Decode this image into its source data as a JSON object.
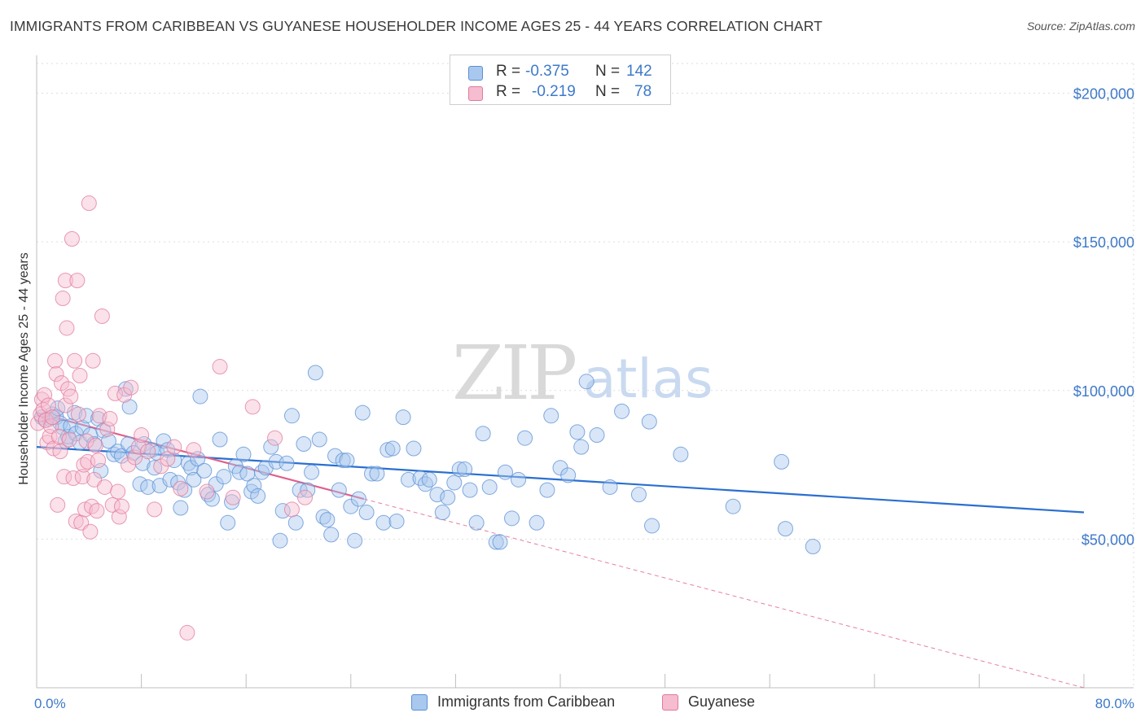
{
  "header": {
    "title": "IMMIGRANTS FROM CARIBBEAN VS GUYANESE HOUSEHOLDER INCOME AGES 25 - 44 YEARS CORRELATION CHART",
    "source": "Source: ZipAtlas.com"
  },
  "watermark": {
    "zip": "ZIP",
    "atlas": "atlas"
  },
  "stats": [
    {
      "r_label": "R =",
      "r_value": "-0.375",
      "n_label": "N =",
      "n_value": "142"
    },
    {
      "r_label": "R =",
      "r_value": "-0.219",
      "n_label": "N =",
      "n_value": "78"
    }
  ],
  "legend": [
    {
      "label": "Immigrants from Caribbean"
    },
    {
      "label": "Guyanese"
    }
  ],
  "colors": {
    "series1_fill": "#a9c8ee",
    "series1_stroke": "#5b8fd6",
    "series1_line": "#2a6fd0",
    "series2_fill": "#f6bccf",
    "series2_stroke": "#e07a9c",
    "series2_line": "#e0608c",
    "axis_text": "#3d79c9",
    "grid": "#dedede"
  },
  "chart_data": {
    "type": "scatter",
    "title": "IMMIGRANTS FROM CARIBBEAN VS GUYANESE HOUSEHOLDER INCOME AGES 25 - 44 YEARS CORRELATION CHART",
    "xlabel": "",
    "ylabel": "Householder Income Ages 25 - 44 years",
    "xlim": [
      0,
      80
    ],
    "ylim": [
      0,
      210000
    ],
    "x_tick_labels": [
      "0.0%",
      "80.0%"
    ],
    "y_ticks": [
      50000,
      100000,
      150000,
      200000
    ],
    "y_tick_labels": [
      "$50,000",
      "$100,000",
      "$150,000",
      "$200,000"
    ],
    "grid": true,
    "legend_position": "bottom",
    "series": [
      {
        "name": "Immigrants from Caribbean",
        "r": -0.375,
        "n": 142,
        "trend": {
          "x": [
            0,
            80
          ],
          "y": [
            81000,
            59000
          ]
        },
        "points": [
          [
            0.4,
            91000
          ],
          [
            0.7,
            90000
          ],
          [
            1.0,
            90500
          ],
          [
            1.2,
            92000
          ],
          [
            1.5,
            91000
          ],
          [
            1.6,
            94000
          ],
          [
            1.8,
            89000
          ],
          [
            2.0,
            87500
          ],
          [
            2.2,
            83000
          ],
          [
            2.4,
            84500
          ],
          [
            2.6,
            88000
          ],
          [
            2.9,
            92500
          ],
          [
            3.0,
            85500
          ],
          [
            3.3,
            82500
          ],
          [
            3.5,
            87500
          ],
          [
            3.8,
            91500
          ],
          [
            4.1,
            85000
          ],
          [
            4.4,
            82000
          ],
          [
            4.7,
            90500
          ],
          [
            4.9,
            73000
          ],
          [
            5.1,
            86500
          ],
          [
            5.5,
            83000
          ],
          [
            5.9,
            78500
          ],
          [
            6.2,
            79500
          ],
          [
            6.5,
            78000
          ],
          [
            6.8,
            100500
          ],
          [
            7.0,
            82000
          ],
          [
            7.1,
            94500
          ],
          [
            7.4,
            79000
          ],
          [
            7.9,
            68500
          ],
          [
            8.1,
            75500
          ],
          [
            8.2,
            82000
          ],
          [
            8.5,
            67500
          ],
          [
            8.8,
            80000
          ],
          [
            9.0,
            74000
          ],
          [
            9.2,
            79000
          ],
          [
            9.4,
            68000
          ],
          [
            9.7,
            83000
          ],
          [
            10.0,
            80000
          ],
          [
            10.2,
            70000
          ],
          [
            10.5,
            76500
          ],
          [
            10.8,
            69000
          ],
          [
            11.0,
            60500
          ],
          [
            11.3,
            66500
          ],
          [
            11.6,
            75500
          ],
          [
            11.8,
            74000
          ],
          [
            12.0,
            70000
          ],
          [
            12.3,
            77000
          ],
          [
            12.5,
            98000
          ],
          [
            12.8,
            73000
          ],
          [
            13.1,
            65000
          ],
          [
            13.4,
            63500
          ],
          [
            13.7,
            68500
          ],
          [
            14.0,
            83500
          ],
          [
            14.3,
            71000
          ],
          [
            14.6,
            55500
          ],
          [
            14.9,
            62500
          ],
          [
            15.2,
            74500
          ],
          [
            15.5,
            72500
          ],
          [
            15.8,
            78500
          ],
          [
            16.1,
            72000
          ],
          [
            16.4,
            66000
          ],
          [
            16.6,
            68000
          ],
          [
            16.9,
            64500
          ],
          [
            17.2,
            72500
          ],
          [
            17.5,
            74000
          ],
          [
            17.9,
            81000
          ],
          [
            18.3,
            76000
          ],
          [
            18.6,
            49500
          ],
          [
            18.8,
            59500
          ],
          [
            19.1,
            75500
          ],
          [
            19.5,
            91500
          ],
          [
            19.8,
            55500
          ],
          [
            20.1,
            66500
          ],
          [
            20.4,
            82000
          ],
          [
            20.7,
            66500
          ],
          [
            21.0,
            72500
          ],
          [
            21.3,
            106000
          ],
          [
            21.6,
            83500
          ],
          [
            21.9,
            57500
          ],
          [
            22.2,
            56500
          ],
          [
            22.5,
            51500
          ],
          [
            22.8,
            78000
          ],
          [
            23.1,
            66500
          ],
          [
            23.4,
            76500
          ],
          [
            23.7,
            76500
          ],
          [
            24.0,
            61000
          ],
          [
            24.3,
            49500
          ],
          [
            24.6,
            63500
          ],
          [
            24.9,
            92500
          ],
          [
            25.2,
            59000
          ],
          [
            25.6,
            72000
          ],
          [
            26.0,
            72000
          ],
          [
            26.5,
            55500
          ],
          [
            26.8,
            80000
          ],
          [
            27.2,
            80500
          ],
          [
            27.5,
            56000
          ],
          [
            28.0,
            91000
          ],
          [
            28.4,
            70000
          ],
          [
            28.8,
            80500
          ],
          [
            29.3,
            70500
          ],
          [
            29.7,
            68500
          ],
          [
            30.0,
            70000
          ],
          [
            30.6,
            65000
          ],
          [
            31.0,
            59000
          ],
          [
            31.4,
            64000
          ],
          [
            31.9,
            69000
          ],
          [
            32.3,
            73500
          ],
          [
            32.7,
            73500
          ],
          [
            33.1,
            66500
          ],
          [
            33.6,
            55500
          ],
          [
            34.1,
            85500
          ],
          [
            34.6,
            67500
          ],
          [
            35.1,
            49000
          ],
          [
            35.4,
            49000
          ],
          [
            35.8,
            72500
          ],
          [
            36.3,
            57000
          ],
          [
            36.8,
            70000
          ],
          [
            37.3,
            84000
          ],
          [
            38.2,
            55500
          ],
          [
            39.0,
            66500
          ],
          [
            39.3,
            91500
          ],
          [
            40.0,
            74000
          ],
          [
            40.6,
            71500
          ],
          [
            41.3,
            86000
          ],
          [
            41.6,
            81000
          ],
          [
            42.0,
            103000
          ],
          [
            42.8,
            85000
          ],
          [
            43.8,
            67500
          ],
          [
            44.7,
            93000
          ],
          [
            46.0,
            65000
          ],
          [
            46.8,
            89500
          ],
          [
            47.0,
            54500
          ],
          [
            49.2,
            78500
          ],
          [
            53.2,
            61000
          ],
          [
            56.9,
            76000
          ],
          [
            57.2,
            53500
          ],
          [
            59.3,
            47500
          ]
        ]
      },
      {
        "name": "Guyanese",
        "r": -0.219,
        "n": 78,
        "trend": {
          "x": [
            0,
            25
          ],
          "y": [
            92500,
            63500
          ]
        },
        "trend_extension": {
          "x": [
            25,
            80
          ],
          "y": [
            63500,
            0
          ]
        },
        "points": [
          [
            0.1,
            89000
          ],
          [
            0.3,
            92000
          ],
          [
            0.4,
            97000
          ],
          [
            0.5,
            93500
          ],
          [
            0.6,
            98500
          ],
          [
            0.7,
            90000
          ],
          [
            0.8,
            82500
          ],
          [
            0.9,
            95000
          ],
          [
            1.0,
            84500
          ],
          [
            1.1,
            88000
          ],
          [
            1.2,
            91000
          ],
          [
            1.3,
            80500
          ],
          [
            1.4,
            110000
          ],
          [
            1.5,
            105500
          ],
          [
            1.6,
            61500
          ],
          [
            1.7,
            84500
          ],
          [
            1.8,
            79500
          ],
          [
            1.9,
            102500
          ],
          [
            2.0,
            131000
          ],
          [
            2.1,
            71000
          ],
          [
            2.2,
            95000
          ],
          [
            2.2,
            137000
          ],
          [
            2.3,
            121000
          ],
          [
            2.4,
            100500
          ],
          [
            2.5,
            83500
          ],
          [
            2.6,
            98000
          ],
          [
            2.7,
            151000
          ],
          [
            2.8,
            70500
          ],
          [
            2.9,
            110000
          ],
          [
            3.0,
            56000
          ],
          [
            3.1,
            137000
          ],
          [
            3.2,
            92000
          ],
          [
            3.3,
            105000
          ],
          [
            3.4,
            55500
          ],
          [
            3.5,
            71000
          ],
          [
            3.6,
            75000
          ],
          [
            3.7,
            60000
          ],
          [
            3.8,
            83000
          ],
          [
            3.9,
            76000
          ],
          [
            4.0,
            163000
          ],
          [
            4.1,
            52500
          ],
          [
            4.2,
            61000
          ],
          [
            4.3,
            110000
          ],
          [
            4.4,
            70000
          ],
          [
            4.5,
            81500
          ],
          [
            4.6,
            59500
          ],
          [
            4.7,
            76500
          ],
          [
            4.8,
            91500
          ],
          [
            5.0,
            125000
          ],
          [
            5.2,
            67500
          ],
          [
            5.4,
            87000
          ],
          [
            5.6,
            90500
          ],
          [
            5.8,
            61500
          ],
          [
            6.0,
            99000
          ],
          [
            6.2,
            66000
          ],
          [
            6.3,
            57500
          ],
          [
            6.5,
            61000
          ],
          [
            6.7,
            98500
          ],
          [
            7.0,
            75000
          ],
          [
            7.2,
            101000
          ],
          [
            7.5,
            77500
          ],
          [
            7.8,
            81000
          ],
          [
            8.0,
            85000
          ],
          [
            8.5,
            79500
          ],
          [
            9.0,
            60000
          ],
          [
            9.5,
            74500
          ],
          [
            10.0,
            77000
          ],
          [
            10.5,
            81000
          ],
          [
            11.0,
            67000
          ],
          [
            11.5,
            18500
          ],
          [
            12.0,
            80000
          ],
          [
            13.0,
            66000
          ],
          [
            14.0,
            108000
          ],
          [
            15.0,
            64000
          ],
          [
            16.5,
            94500
          ],
          [
            18.2,
            84000
          ],
          [
            19.5,
            60000
          ],
          [
            20.5,
            64000
          ]
        ]
      }
    ]
  }
}
